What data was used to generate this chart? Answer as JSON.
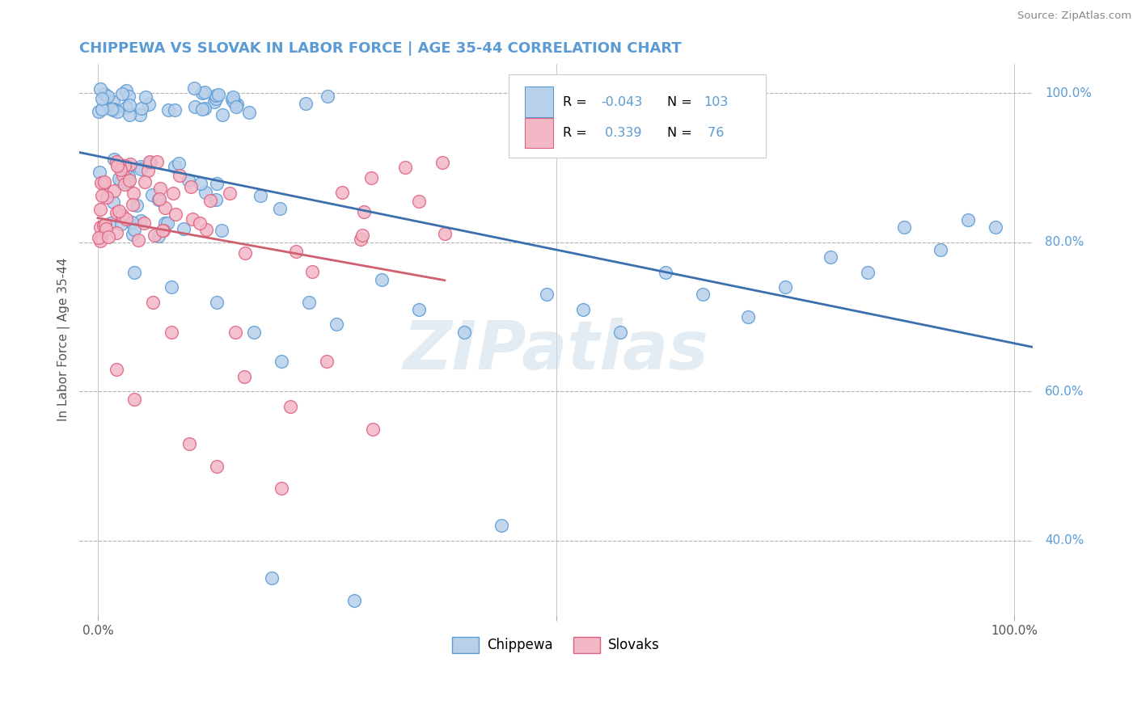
{
  "title": "CHIPPEWA VS SLOVAK IN LABOR FORCE | AGE 35-44 CORRELATION CHART",
  "source": "Source: ZipAtlas.com",
  "ylabel": "In Labor Force | Age 35-44",
  "xlim": [
    -0.02,
    1.02
  ],
  "ylim": [
    0.3,
    1.04
  ],
  "ytick_labels_right": [
    "40.0%",
    "60.0%",
    "80.0%",
    "100.0%"
  ],
  "ytick_values_right": [
    0.4,
    0.6,
    0.8,
    1.0
  ],
  "chippewa_color": "#b8d0ea",
  "slovak_color": "#f2b8c6",
  "chippewa_edge": "#5b9bd5",
  "slovak_edge": "#e06080",
  "trend_chippewa_color": "#3c6fad",
  "trend_slovak_color": "#d06070",
  "background_color": "#ffffff",
  "grid_color": "#b0b0b0",
  "watermark_text": "ZIPatlas",
  "watermark_color": "#c8d8e8",
  "title_color": "#5b9bd5",
  "ylabel_color": "#555555",
  "right_label_color": "#5b9bd5",
  "legend_text_color": "#5b9bd5",
  "source_color": "#888888",
  "R_chip": "-0.043",
  "N_chip": "103",
  "R_slov": "0.339",
  "N_slov": "76"
}
